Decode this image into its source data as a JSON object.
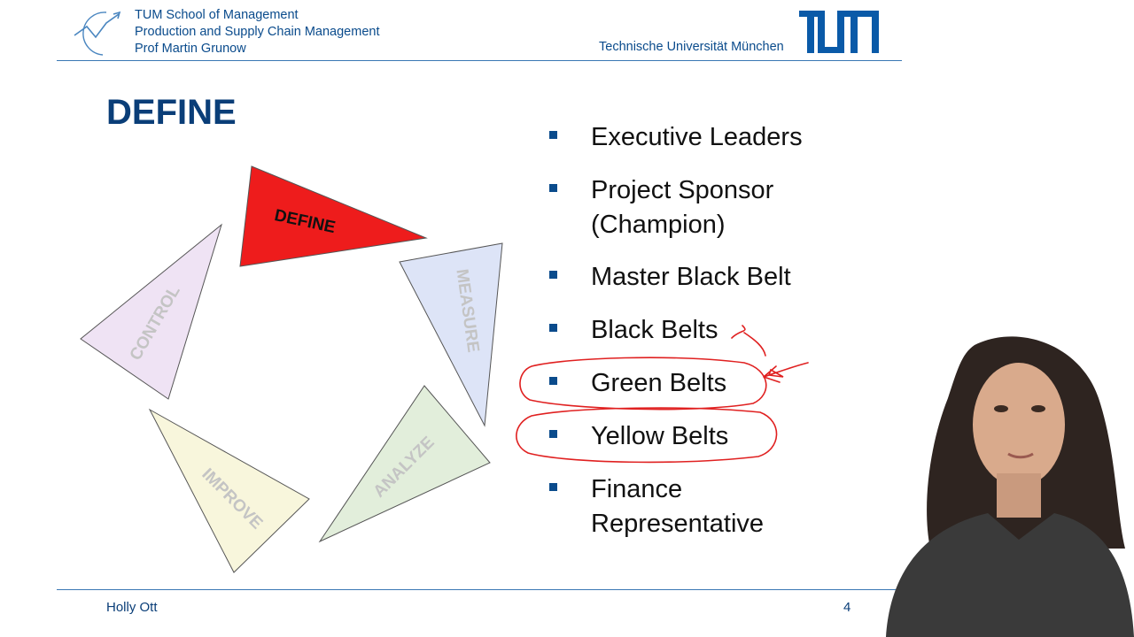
{
  "header": {
    "institution_lines": [
      "TUM School of Management",
      "Production and Supply Chain Management",
      "Prof Martin Grunow"
    ],
    "university": "Technische Universität München",
    "logo_text": "TUM"
  },
  "slide": {
    "title": "DEFINE",
    "cycle": [
      {
        "label": "DEFINE",
        "color": "#ee1c1c",
        "text_color": "#111111"
      },
      {
        "label": "MEASURE",
        "color": "#dde4f7",
        "text_color": "#c4c4c4"
      },
      {
        "label": "ANALYZE",
        "color": "#e2eedb",
        "text_color": "#c4c4c4"
      },
      {
        "label": "IMPROVE",
        "color": "#f8f6dc",
        "text_color": "#c4c4c4"
      },
      {
        "label": "CONTROL",
        "color": "#efe3f4",
        "text_color": "#c4c4c4"
      }
    ],
    "bullets": [
      "Executive Leaders",
      "Project Sponsor\n(Champion)",
      "Master Black Belt",
      "Black Belts",
      "Green Belts",
      "Yellow Belts",
      "Finance\nRepresentative"
    ],
    "annotations": {
      "color": "#e02020",
      "circled": [
        "Green Belts",
        "Yellow Belts"
      ]
    }
  },
  "footer": {
    "presenter": "Holly Ott",
    "page_number": "4"
  },
  "colors": {
    "brand_blue": "#0a4b8c",
    "title_blue": "#0a3e78"
  }
}
